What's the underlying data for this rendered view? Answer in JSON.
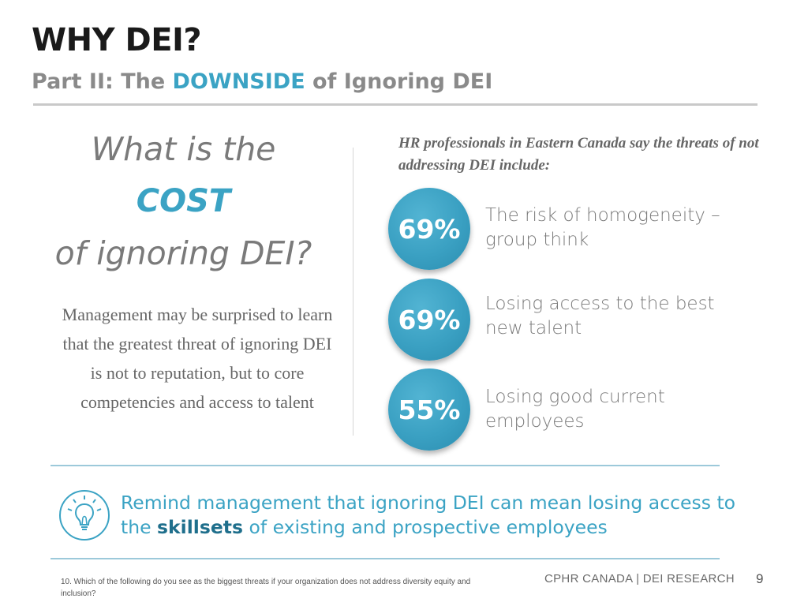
{
  "header": {
    "title": "WHY DEI?",
    "subtitle_prefix": "Part II: The ",
    "subtitle_highlight": "DOWNSIDE",
    "subtitle_suffix": " of Ignoring DEI"
  },
  "question": {
    "line1": "What is the",
    "highlight": "COST",
    "line3": "of ignoring DEI?"
  },
  "body_text": "Management may be surprised to learn that the greatest threat of ignoring DEI is not to reputation, but to core competencies and access to talent",
  "survey": {
    "intro": "HR professionals in Eastern Canada say the threats of not addressing DEI include:",
    "stats": [
      {
        "value": "69%",
        "label": "The risk of homogeneity – group think"
      },
      {
        "value": "69%",
        "label": "Losing access to the best new talent"
      },
      {
        "value": "55%",
        "label": "Losing good current employees"
      }
    ]
  },
  "tip": {
    "icon": "lightbulb-icon",
    "text_before": "Remind management that ignoring DEI can mean losing access to the ",
    "emphasis": "skillsets",
    "text_after": " of existing and prospective employees"
  },
  "footer": {
    "footnote": "10. Which of the following do you see as the biggest threats if your organization does not address diversity equity and inclusion?",
    "brand": "CPHR CANADA | DEI RESEARCH",
    "page_number": "9"
  },
  "colors": {
    "accent": "#3ba3c4",
    "title": "#1a1a1a",
    "muted_text": "#7a7a7a",
    "rule": "#9cc9da"
  }
}
